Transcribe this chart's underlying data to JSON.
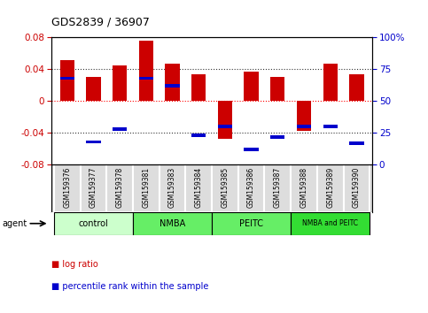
{
  "title": "GDS2839 / 36907",
  "samples": [
    "GSM159376",
    "GSM159377",
    "GSM159378",
    "GSM159381",
    "GSM159383",
    "GSM159384",
    "GSM159385",
    "GSM159386",
    "GSM159387",
    "GSM159388",
    "GSM159389",
    "GSM159390"
  ],
  "log_ratios": [
    0.052,
    0.031,
    0.045,
    0.076,
    0.047,
    0.034,
    -0.047,
    0.037,
    0.03,
    -0.037,
    0.047,
    0.034
  ],
  "percentile_ranks": [
    0.68,
    0.18,
    0.28,
    0.68,
    0.62,
    0.23,
    0.3,
    0.12,
    0.22,
    0.3,
    0.3,
    0.17
  ],
  "groups": [
    {
      "label": "control",
      "start": 0,
      "end": 3,
      "color": "#ccffcc"
    },
    {
      "label": "NMBA",
      "start": 3,
      "end": 6,
      "color": "#66ee66"
    },
    {
      "label": "PEITC",
      "start": 6,
      "end": 9,
      "color": "#66ee66"
    },
    {
      "label": "NMBA and PEITC",
      "start": 9,
      "end": 12,
      "color": "#33dd33"
    }
  ],
  "ylim": [
    -0.08,
    0.08
  ],
  "yticks_left": [
    -0.08,
    -0.04,
    0.0,
    0.04,
    0.08
  ],
  "bar_color": "#cc0000",
  "marker_color": "#0000cc",
  "bg_color": "#ffffff",
  "zero_line_color": "#ff0000",
  "legend_log_color": "#cc0000",
  "legend_pct_color": "#0000cc"
}
